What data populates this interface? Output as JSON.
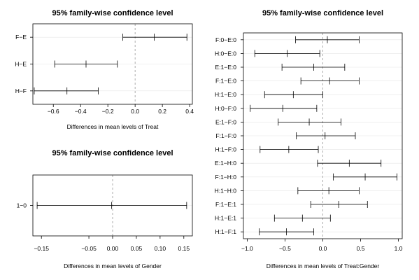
{
  "chart_data": [
    {
      "type": "interval",
      "title": "95% family-wise confidence level",
      "xlabel": "Differences in mean levels of Treat",
      "xlim": [
        -0.75,
        0.42
      ],
      "xticks": [
        -0.6,
        -0.4,
        -0.2,
        0.0,
        0.2,
        0.4
      ],
      "xtick_labels": [
        "−0.6",
        "−0.4",
        "−0.2",
        "0.0",
        "0.2",
        "0.4"
      ],
      "comparisons": [
        {
          "label": "F−E",
          "estimate": 0.14,
          "lower": -0.09,
          "upper": 0.38
        },
        {
          "label": "H−E",
          "estimate": -0.36,
          "lower": -0.59,
          "upper": -0.13
        },
        {
          "label": "H−F",
          "estimate": -0.5,
          "lower": -0.74,
          "upper": -0.27
        }
      ]
    },
    {
      "type": "interval",
      "title": "95% family-wise confidence level",
      "xlabel": "Differences in mean levels of Gender",
      "xlim": [
        -0.168,
        0.168
      ],
      "xticks": [
        -0.15,
        -0.05,
        0.0,
        0.05,
        0.1,
        0.15
      ],
      "xtick_labels": [
        "−0.15",
        "−0.05",
        "0.00",
        "0.05",
        "0.10",
        "0.15"
      ],
      "comparisons": [
        {
          "label": "1−0",
          "estimate": -0.002,
          "lower": -0.159,
          "upper": 0.156
        }
      ]
    },
    {
      "type": "interval",
      "title": "95% family-wise confidence level",
      "xlabel": "Differences in mean levels of Treat:Gender",
      "xlim": [
        -1.05,
        1.05
      ],
      "xticks": [
        -1.0,
        -0.5,
        0.0,
        0.5,
        1.0
      ],
      "xtick_labels": [
        "−1.0",
        "−0.5",
        "0.0",
        "0.5",
        "1.0"
      ],
      "comparisons": [
        {
          "label": "F:0−E:0",
          "estimate": 0.06,
          "lower": -0.36,
          "upper": 0.48
        },
        {
          "label": "H:0−E:0",
          "estimate": -0.47,
          "lower": -0.9,
          "upper": -0.04
        },
        {
          "label": "E:1−E:0",
          "estimate": -0.12,
          "lower": -0.54,
          "upper": 0.29
        },
        {
          "label": "F:1−E:0",
          "estimate": 0.09,
          "lower": -0.29,
          "upper": 0.48
        },
        {
          "label": "H:1−E:0",
          "estimate": -0.39,
          "lower": -0.77,
          "upper": 0.0
        },
        {
          "label": "H:0−F:0",
          "estimate": -0.53,
          "lower": -0.96,
          "upper": -0.08
        },
        {
          "label": "E:1−F:0",
          "estimate": -0.18,
          "lower": -0.59,
          "upper": 0.24
        },
        {
          "label": "F:1−F:0",
          "estimate": 0.03,
          "lower": -0.35,
          "upper": 0.43
        },
        {
          "label": "H:1−F:0",
          "estimate": -0.45,
          "lower": -0.83,
          "upper": -0.06
        },
        {
          "label": "E:1−H:0",
          "estimate": 0.35,
          "lower": -0.07,
          "upper": 0.77
        },
        {
          "label": "F:1−H:0",
          "estimate": 0.56,
          "lower": 0.14,
          "upper": 0.98
        },
        {
          "label": "H:1−H:0",
          "estimate": 0.08,
          "lower": -0.33,
          "upper": 0.48
        },
        {
          "label": "F:1−E:1",
          "estimate": 0.21,
          "lower": -0.16,
          "upper": 0.59
        },
        {
          "label": "H:1−E:1",
          "estimate": -0.27,
          "lower": -0.64,
          "upper": 0.1
        },
        {
          "label": "H:1−F:1",
          "estimate": -0.48,
          "lower": -0.84,
          "upper": -0.12
        }
      ]
    }
  ]
}
